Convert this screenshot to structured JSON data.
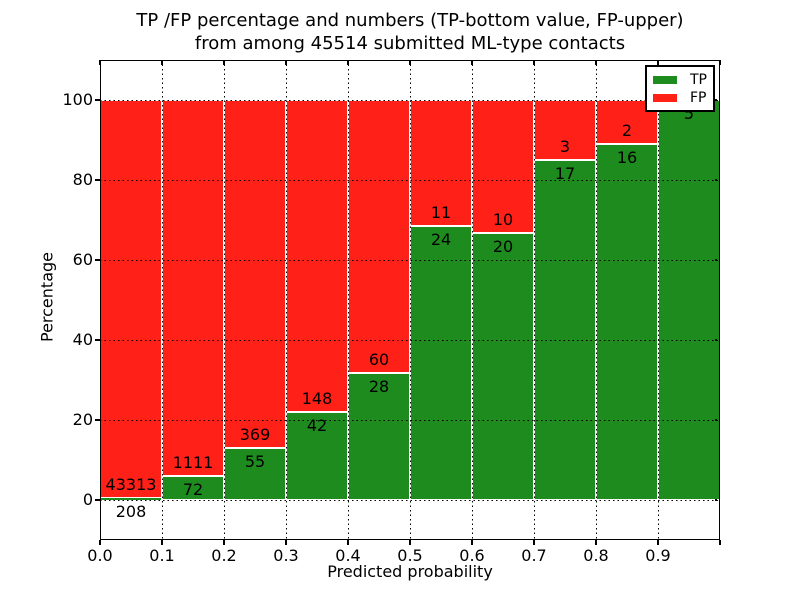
{
  "figure": {
    "title_line1": "TP /FP percentage and numbers (TP-bottom value, FP-upper)",
    "title_line2": "from among 45514 submitted ML-type contacts"
  },
  "legend": {
    "position": "upper right",
    "items": [
      {
        "label": "TP",
        "color": "#1e8b1e"
      },
      {
        "label": "FP",
        "color": "#ff2018"
      }
    ]
  },
  "chart_data": {
    "type": "bar",
    "stacked": true,
    "title": "TP /FP percentage and numbers (TP-bottom value, FP-upper) from among 45514 submitted ML-type contacts",
    "xlabel": "Predicted probability",
    "ylabel": "Percentage",
    "total_submitted": 45514,
    "bins": [
      "0.0-0.1",
      "0.1-0.2",
      "0.2-0.3",
      "0.3-0.4",
      "0.4-0.5",
      "0.5-0.6",
      "0.6-0.7",
      "0.7-0.8",
      "0.8-0.9",
      "0.9-1.0"
    ],
    "series": [
      {
        "name": "TP",
        "color": "#1e8b1e",
        "counts": [
          208,
          72,
          55,
          42,
          28,
          24,
          20,
          17,
          16,
          5
        ]
      },
      {
        "name": "FP",
        "color": "#ff2018",
        "counts": [
          43313,
          1111,
          369,
          148,
          60,
          11,
          10,
          3,
          2,
          0
        ]
      }
    ],
    "xticks": [
      "0.0",
      "0.1",
      "0.2",
      "0.3",
      "0.4",
      "0.5",
      "0.6",
      "0.7",
      "0.8",
      "0.9"
    ],
    "yticks": [
      0,
      20,
      40,
      60,
      80,
      100
    ],
    "ylim": [
      -10,
      110
    ],
    "grid": true,
    "bar_edge_color": "#ffffff",
    "label_color": "#000000"
  }
}
